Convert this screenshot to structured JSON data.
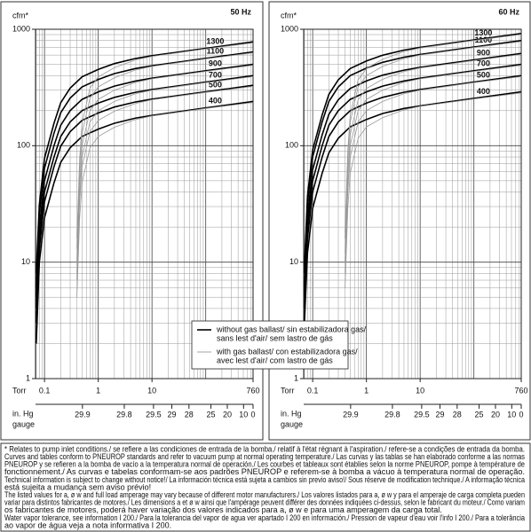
{
  "chart_data": [
    {
      "type": "line",
      "title": "50 Hz",
      "ylabel": "cfm*",
      "xlabel": "Torr",
      "x2label": [
        "in. Hg",
        "gauge"
      ],
      "log_x": true,
      "log_y": true,
      "grid": true,
      "xlim": [
        0.068,
        760
      ],
      "ylim": [
        1,
        1000
      ],
      "xticks": [
        0.1,
        1,
        10,
        760
      ],
      "yticks": [
        1,
        10,
        100,
        1000
      ],
      "x2ticks": [
        29.9,
        29.8,
        29.5,
        29,
        28,
        25,
        20,
        10,
        0
      ],
      "series": [
        {
          "name": "1300",
          "color": "#000000",
          "line_width": 1.6,
          "x": [
            0.07,
            0.08,
            0.1,
            0.15,
            0.2,
            0.3,
            0.5,
            1,
            2,
            5,
            10,
            100,
            760
          ],
          "values": [
            8,
            31,
            78,
            156,
            234,
            312,
            390,
            452,
            507,
            562,
            593,
            686,
            780
          ]
        },
        {
          "name": "1100",
          "color": "#000000",
          "line_width": 1.6,
          "x": [
            0.07,
            0.08,
            0.1,
            0.15,
            0.2,
            0.3,
            0.5,
            1,
            2,
            5,
            10,
            100,
            760
          ],
          "values": [
            6,
            26,
            64,
            128,
            192,
            256,
            320,
            371,
            416,
            461,
            486,
            563,
            640
          ]
        },
        {
          "name": "900",
          "color": "#000000",
          "line_width": 1.6,
          "x": [
            0.07,
            0.08,
            0.1,
            0.15,
            0.2,
            0.3,
            0.5,
            1,
            2,
            5,
            10,
            100,
            760
          ],
          "values": [
            5,
            20,
            50,
            100,
            150,
            200,
            250,
            290,
            325,
            360,
            380,
            440,
            500
          ]
        },
        {
          "name": "700",
          "color": "#000000",
          "line_width": 1.6,
          "x": [
            0.07,
            0.08,
            0.1,
            0.15,
            0.2,
            0.3,
            0.5,
            1,
            2,
            5,
            10,
            100,
            760
          ],
          "values": [
            4,
            16,
            40,
            80,
            120,
            160,
            200,
            232,
            260,
            288,
            304,
            352,
            400
          ]
        },
        {
          "name": "500",
          "color": "#000000",
          "line_width": 1.6,
          "x": [
            0.07,
            0.08,
            0.1,
            0.15,
            0.2,
            0.3,
            0.5,
            1,
            2,
            5,
            10,
            100,
            760
          ],
          "values": [
            3,
            13,
            33,
            66,
            99,
            132,
            165,
            191,
            215,
            238,
            251,
            290,
            330
          ]
        },
        {
          "name": "400",
          "color": "#000000",
          "line_width": 1.6,
          "x": [
            0.07,
            0.08,
            0.1,
            0.15,
            0.2,
            0.3,
            0.5,
            1,
            2,
            5,
            10,
            100,
            760
          ],
          "values": [
            2,
            10,
            24,
            48,
            72,
            96,
            120,
            139,
            156,
            173,
            182,
            211,
            240
          ]
        },
        {
          "color": "#999999",
          "line_width": 0.8,
          "x": [
            0.4,
            0.45,
            0.5,
            0.7,
            1,
            2,
            5,
            10,
            100,
            760
          ],
          "values": [
            16,
            78,
            156,
            312,
            390,
            468,
            546,
            585,
            679,
            764
          ]
        },
        {
          "color": "#999999",
          "line_width": 0.8,
          "x": [
            0.4,
            0.45,
            0.5,
            0.7,
            1,
            2,
            5,
            10,
            100,
            760
          ],
          "values": [
            13,
            64,
            128,
            256,
            320,
            384,
            448,
            480,
            557,
            627
          ]
        },
        {
          "color": "#999999",
          "line_width": 0.8,
          "x": [
            0.4,
            0.45,
            0.5,
            0.7,
            1,
            2,
            5,
            10,
            100,
            760
          ],
          "values": [
            10,
            50,
            100,
            200,
            250,
            300,
            350,
            375,
            435,
            490
          ]
        },
        {
          "color": "#999999",
          "line_width": 0.8,
          "x": [
            0.4,
            0.45,
            0.5,
            0.7,
            1,
            2,
            5,
            10,
            100,
            760
          ],
          "values": [
            8,
            40,
            80,
            160,
            200,
            240,
            280,
            300,
            348,
            392
          ]
        },
        {
          "color": "#999999",
          "line_width": 0.8,
          "x": [
            0.4,
            0.45,
            0.5,
            0.7,
            1,
            2,
            5,
            10,
            100,
            760
          ],
          "values": [
            7,
            33,
            66,
            132,
            165,
            198,
            231,
            248,
            287,
            323
          ]
        },
        {
          "color": "#999999",
          "line_width": 0.8,
          "x": [
            0.4,
            0.45,
            0.5,
            0.7,
            1,
            2,
            5,
            10,
            100,
            760
          ],
          "values": [
            5,
            24,
            48,
            96,
            120,
            144,
            168,
            180,
            209,
            235
          ]
        }
      ]
    },
    {
      "type": "line",
      "title": "60 Hz",
      "ylabel": "cfm*",
      "xlabel": "Torr",
      "x2label": [
        "in. Hg",
        "gauge"
      ],
      "log_x": true,
      "log_y": true,
      "grid": true,
      "xlim": [
        0.068,
        760
      ],
      "ylim": [
        1,
        1000
      ],
      "xticks": [
        0.1,
        1,
        10,
        760
      ],
      "yticks": [
        1,
        10,
        100,
        1000
      ],
      "x2ticks": [
        29.9,
        29.8,
        29.5,
        29,
        28,
        25,
        20,
        10,
        0
      ],
      "series": [
        {
          "name": "1300",
          "color": "#000000",
          "line_width": 1.6,
          "x": [
            0.07,
            0.08,
            0.1,
            0.15,
            0.2,
            0.3,
            0.5,
            1,
            2,
            5,
            10,
            100,
            760
          ],
          "values": [
            9,
            37,
            92,
            184,
            276,
            368,
            460,
            534,
            598,
            662,
            699,
            810,
            920
          ]
        },
        {
          "name": "1100",
          "color": "#000000",
          "line_width": 1.6,
          "x": [
            0.07,
            0.08,
            0.1,
            0.15,
            0.2,
            0.3,
            0.5,
            1,
            2,
            5,
            10,
            100,
            760
          ],
          "values": [
            8,
            32,
            80,
            160,
            240,
            320,
            400,
            464,
            520,
            576,
            608,
            704,
            800
          ]
        },
        {
          "name": "900",
          "color": "#000000",
          "line_width": 1.6,
          "x": [
            0.07,
            0.08,
            0.1,
            0.15,
            0.2,
            0.3,
            0.5,
            1,
            2,
            5,
            10,
            100,
            760
          ],
          "values": [
            6,
            25,
            62,
            124,
            186,
            248,
            310,
            360,
            403,
            446,
            471,
            546,
            620
          ]
        },
        {
          "name": "700",
          "color": "#000000",
          "line_width": 1.6,
          "x": [
            0.07,
            0.08,
            0.1,
            0.15,
            0.2,
            0.3,
            0.5,
            1,
            2,
            5,
            10,
            100,
            760
          ],
          "values": [
            5,
            20,
            50,
            100,
            150,
            200,
            250,
            290,
            325,
            360,
            380,
            440,
            500
          ]
        },
        {
          "name": "500",
          "color": "#000000",
          "line_width": 1.6,
          "x": [
            0.07,
            0.08,
            0.1,
            0.15,
            0.2,
            0.3,
            0.5,
            1,
            2,
            5,
            10,
            100,
            760
          ],
          "values": [
            4,
            16,
            40,
            80,
            120,
            160,
            200,
            232,
            260,
            288,
            304,
            352,
            400
          ]
        },
        {
          "name": "400",
          "color": "#000000",
          "line_width": 1.6,
          "x": [
            0.07,
            0.08,
            0.1,
            0.15,
            0.2,
            0.3,
            0.5,
            1,
            2,
            5,
            10,
            100,
            760
          ],
          "values": [
            3,
            12,
            29,
            58,
            87,
            116,
            145,
            168,
            189,
            209,
            220,
            255,
            290
          ]
        },
        {
          "color": "#999999",
          "line_width": 0.8,
          "x": [
            0.4,
            0.45,
            0.5,
            0.7,
            1,
            2,
            5,
            10,
            100,
            760
          ],
          "values": [
            18,
            92,
            184,
            368,
            460,
            552,
            644,
            690,
            800,
            902
          ]
        },
        {
          "color": "#999999",
          "line_width": 0.8,
          "x": [
            0.4,
            0.45,
            0.5,
            0.7,
            1,
            2,
            5,
            10,
            100,
            760
          ],
          "values": [
            16,
            80,
            160,
            320,
            400,
            480,
            560,
            600,
            696,
            784
          ]
        },
        {
          "color": "#999999",
          "line_width": 0.8,
          "x": [
            0.4,
            0.45,
            0.5,
            0.7,
            1,
            2,
            5,
            10,
            100,
            760
          ],
          "values": [
            12,
            62,
            124,
            248,
            310,
            372,
            434,
            465,
            539,
            608
          ]
        },
        {
          "color": "#999999",
          "line_width": 0.8,
          "x": [
            0.4,
            0.45,
            0.5,
            0.7,
            1,
            2,
            5,
            10,
            100,
            760
          ],
          "values": [
            10,
            50,
            100,
            200,
            250,
            300,
            350,
            375,
            435,
            490
          ]
        },
        {
          "color": "#999999",
          "line_width": 0.8,
          "x": [
            0.4,
            0.45,
            0.5,
            0.7,
            1,
            2,
            5,
            10,
            100,
            760
          ],
          "values": [
            8,
            40,
            80,
            160,
            200,
            240,
            280,
            300,
            348,
            392
          ]
        },
        {
          "color": "#999999",
          "line_width": 0.8,
          "x": [
            0.4,
            0.45,
            0.5,
            0.7,
            1,
            2,
            5,
            10,
            100,
            760
          ],
          "values": [
            6,
            29,
            58,
            116,
            145,
            174,
            203,
            218,
            252,
            284
          ]
        }
      ]
    }
  ],
  "legend": [
    {
      "color": "#000000",
      "lines": [
        "without gas ballast/  sin estabilizadora gas/",
        "sans lest d'air/  sem lastro de gás"
      ]
    },
    {
      "color": "#999999",
      "lines": [
        "with gas ballast/  con estabilizadora gas/",
        "avec lest d'air/  com lastro de gás"
      ]
    }
  ],
  "notes": [
    "* Relates to pump inlet conditions./ se refiere a las condiciones de entrada de la bomba./ relatif à l'état régnant à l'aspiration./ refere-se a condições de entrada da bomba.",
    "Curves and tables conform to PNEUROP standards and refer to vacuum pump at normal operating temperature./ Las curvas y las tablas se han elaborado conforme a las normas",
    "PNEUROP y se refieren a la bomba de vacío a la temperatura normal de operación./ Les courbes et tableaux sont établies selon la norme PNEUROP, pompe à température de",
    "fonctionnement./ As curvas e tabelas conformam-se aos padrões PNEUROP e referem-se à bomba a vácuo à temperatura normal de operação.",
    "Technical information is subject to change without notice!/ La información técnica está sujeta a cambios sin previo aviso!/ Sous réserve de modification technique./ A informação técnica",
    "está sujeita a mudança sem aviso prévio!",
    "The listed values for a, ø w and full load amperage may vary because of different motor manufacturers./ Los valores listados para a, ø w y para el amperaje de carga completa pueden",
    "variar para distintos fabricantes de motores./ Les dimensions a et ø w ainsi que l'ampérage peuvent différer des données indiquées ci-dessus, selon le fabricant du moteur./ Como variam",
    "os fabricantes de motores, poderá haver variação dos valores indicados para a, ø w e para uma amperagem da carga total.",
    "Water vapor tolerance, see information I 200./ Para la tolerancia del vapor de agua ver apartado I 200 en información./  Pression de vapeur d'eau voir l'info I 200./  Para a tolerância",
    "ao vapor de água veja a nota informativa I 200."
  ]
}
